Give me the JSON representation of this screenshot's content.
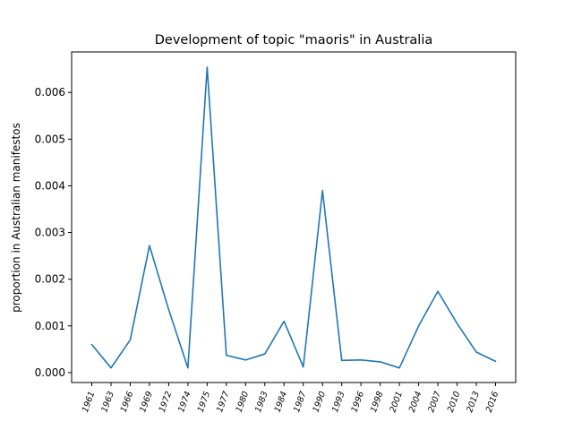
{
  "chart_data": {
    "type": "line",
    "title": "Development of topic \"maoris\" in Australia",
    "xlabel": "",
    "ylabel": "proportion in Australian manifestos",
    "categories": [
      "1961",
      "1963",
      "1966",
      "1969",
      "1972",
      "1974",
      "1975",
      "1977",
      "1980",
      "1983",
      "1984",
      "1987",
      "1990",
      "1993",
      "1996",
      "1998",
      "2001",
      "2004",
      "2007",
      "2010",
      "2013",
      "2016"
    ],
    "series": [
      {
        "values": [
          0.0006,
          0.0001,
          0.0007,
          0.00272,
          0.00135,
          0.0001,
          0.00654,
          0.00037,
          0.00027,
          0.0004,
          0.0011,
          0.00012,
          0.0039,
          0.00026,
          0.00027,
          0.00023,
          0.0001,
          0.001,
          0.00174,
          0.00105,
          0.00044,
          0.00024
        ],
        "color": "#1f77b4"
      }
    ],
    "ylim": [
      -0.000213,
      0.006868
    ],
    "yticks": [
      0.0,
      0.001,
      0.002,
      0.003,
      0.004,
      0.005,
      0.006
    ],
    "ytick_labels": [
      "0.000",
      "0.001",
      "0.002",
      "0.003",
      "0.004",
      "0.005",
      "0.006"
    ],
    "grid": false,
    "legend": "none"
  }
}
